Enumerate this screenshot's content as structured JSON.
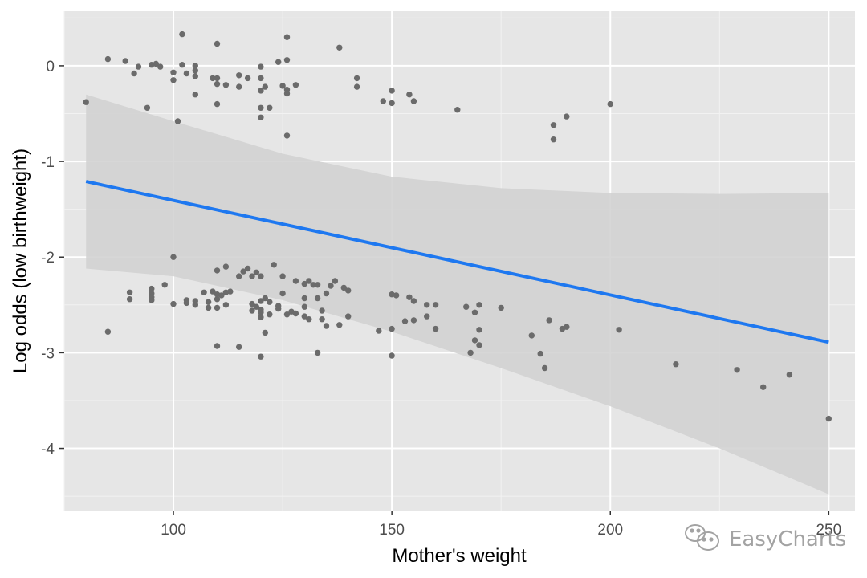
{
  "chart_data": {
    "type": "scatter",
    "xlabel": "Mother's weight",
    "ylabel": "Log odds (low birthweight)",
    "xlim": [
      75,
      256
    ],
    "ylim": [
      -4.65,
      0.57
    ],
    "x_ticks": [
      100,
      150,
      200,
      250
    ],
    "x_tick_labels": [
      "100",
      "150",
      "200",
      "250"
    ],
    "x_minor_ticks": [
      75,
      125,
      175,
      225
    ],
    "y_ticks": [
      0,
      -1,
      -2,
      -3,
      -4
    ],
    "y_tick_labels": [
      "0",
      "-1",
      "-2",
      "-3",
      "-4"
    ],
    "y_minor_ticks": [
      0.5,
      -0.5,
      -1.5,
      -2.5,
      -3.5,
      -4.5
    ],
    "grid": true,
    "series": [
      {
        "name": "points",
        "type": "scatter",
        "points": [
          [
            80,
            -0.38
          ],
          [
            85,
            0.07
          ],
          [
            89,
            0.05
          ],
          [
            91,
            -0.08
          ],
          [
            92,
            -0.01
          ],
          [
            94,
            -0.44
          ],
          [
            95,
            0.01
          ],
          [
            96,
            0.02
          ],
          [
            97,
            -0.01
          ],
          [
            100,
            -0.07
          ],
          [
            100,
            -0.15
          ],
          [
            101,
            -0.58
          ],
          [
            102,
            0.33
          ],
          [
            102,
            0.01
          ],
          [
            103,
            -0.08
          ],
          [
            105,
            0.0
          ],
          [
            105,
            -0.05
          ],
          [
            105,
            -0.11
          ],
          [
            105,
            -0.3
          ],
          [
            109,
            -0.13
          ],
          [
            110,
            0.23
          ],
          [
            110,
            -0.13
          ],
          [
            110,
            -0.19
          ],
          [
            110,
            -0.4
          ],
          [
            112,
            -0.2
          ],
          [
            115,
            -0.1
          ],
          [
            115,
            -0.22
          ],
          [
            117,
            -0.13
          ],
          [
            120,
            -0.01
          ],
          [
            120,
            -0.13
          ],
          [
            120,
            -0.26
          ],
          [
            120,
            -0.44
          ],
          [
            120,
            -0.54
          ],
          [
            121,
            -0.22
          ],
          [
            122,
            -0.44
          ],
          [
            124,
            0.04
          ],
          [
            125,
            -0.21
          ],
          [
            126,
            0.06
          ],
          [
            126,
            0.3
          ],
          [
            126,
            -0.25
          ],
          [
            126,
            -0.29
          ],
          [
            126,
            -0.73
          ],
          [
            128,
            -0.2
          ],
          [
            138,
            0.19
          ],
          [
            142,
            -0.13
          ],
          [
            142,
            -0.22
          ],
          [
            148,
            -0.37
          ],
          [
            150,
            -0.26
          ],
          [
            150,
            -0.39
          ],
          [
            154,
            -0.3
          ],
          [
            155,
            -0.37
          ],
          [
            165,
            -0.46
          ],
          [
            187,
            -0.62
          ],
          [
            187,
            -0.77
          ],
          [
            190,
            -0.53
          ],
          [
            200,
            -0.4
          ],
          [
            85,
            -2.78
          ],
          [
            90,
            -2.37
          ],
          [
            90,
            -2.44
          ],
          [
            95,
            -2.33
          ],
          [
            95,
            -2.38
          ],
          [
            95,
            -2.42
          ],
          [
            95,
            -2.45
          ],
          [
            98,
            -2.29
          ],
          [
            100,
            -2.0
          ],
          [
            100,
            -2.49
          ],
          [
            103,
            -2.45
          ],
          [
            103,
            -2.48
          ],
          [
            105,
            -2.46
          ],
          [
            105,
            -2.5
          ],
          [
            107,
            -2.37
          ],
          [
            108,
            -2.53
          ],
          [
            108,
            -2.47
          ],
          [
            109,
            -2.36
          ],
          [
            110,
            -2.14
          ],
          [
            110,
            -2.39
          ],
          [
            110,
            -2.44
          ],
          [
            110,
            -2.53
          ],
          [
            110,
            -2.93
          ],
          [
            111,
            -2.4
          ],
          [
            112,
            -2.1
          ],
          [
            112,
            -2.37
          ],
          [
            112,
            -2.5
          ],
          [
            113,
            -2.36
          ],
          [
            115,
            -2.2
          ],
          [
            115,
            -2.94
          ],
          [
            116,
            -2.15
          ],
          [
            117,
            -2.12
          ],
          [
            118,
            -2.2
          ],
          [
            118,
            -2.49
          ],
          [
            118,
            -2.56
          ],
          [
            119,
            -2.52
          ],
          [
            119,
            -2.16
          ],
          [
            120,
            -2.2
          ],
          [
            120,
            -2.46
          ],
          [
            120,
            -2.55
          ],
          [
            120,
            -2.58
          ],
          [
            120,
            -2.63
          ],
          [
            120,
            -3.04
          ],
          [
            121,
            -2.43
          ],
          [
            121,
            -2.79
          ],
          [
            122,
            -2.47
          ],
          [
            122,
            -2.6
          ],
          [
            123,
            -2.08
          ],
          [
            124,
            -2.51
          ],
          [
            124,
            -2.54
          ],
          [
            125,
            -2.2
          ],
          [
            125,
            -2.38
          ],
          [
            126,
            -2.6
          ],
          [
            127,
            -2.57
          ],
          [
            128,
            -2.25
          ],
          [
            128,
            -2.59
          ],
          [
            130,
            -2.28
          ],
          [
            130,
            -2.43
          ],
          [
            130,
            -2.52
          ],
          [
            130,
            -2.62
          ],
          [
            131,
            -2.25
          ],
          [
            131,
            -2.65
          ],
          [
            132,
            -2.29
          ],
          [
            133,
            -2.29
          ],
          [
            133,
            -2.43
          ],
          [
            133,
            -3.0
          ],
          [
            134,
            -2.56
          ],
          [
            134,
            -2.65
          ],
          [
            135,
            -2.38
          ],
          [
            135,
            -2.72
          ],
          [
            136,
            -2.3
          ],
          [
            137,
            -2.25
          ],
          [
            138,
            -2.71
          ],
          [
            139,
            -2.32
          ],
          [
            140,
            -2.35
          ],
          [
            140,
            -2.62
          ],
          [
            147,
            -2.77
          ],
          [
            150,
            -2.39
          ],
          [
            150,
            -2.75
          ],
          [
            150,
            -3.03
          ],
          [
            151,
            -2.4
          ],
          [
            153,
            -2.67
          ],
          [
            154,
            -2.42
          ],
          [
            155,
            -2.46
          ],
          [
            155,
            -2.66
          ],
          [
            158,
            -2.5
          ],
          [
            158,
            -2.62
          ],
          [
            160,
            -2.5
          ],
          [
            160,
            -2.75
          ],
          [
            167,
            -2.52
          ],
          [
            168,
            -3.0
          ],
          [
            169,
            -2.58
          ],
          [
            169,
            -2.87
          ],
          [
            170,
            -2.5
          ],
          [
            170,
            -2.76
          ],
          [
            170,
            -2.92
          ],
          [
            175,
            -2.53
          ],
          [
            182,
            -2.82
          ],
          [
            184,
            -3.01
          ],
          [
            185,
            -3.16
          ],
          [
            186,
            -2.66
          ],
          [
            189,
            -2.75
          ],
          [
            190,
            -2.73
          ],
          [
            202,
            -2.76
          ],
          [
            215,
            -3.12
          ],
          [
            229,
            -3.18
          ],
          [
            235,
            -3.36
          ],
          [
            241,
            -3.23
          ],
          [
            250,
            -3.69
          ]
        ]
      },
      {
        "name": "fit",
        "type": "line",
        "x": [
          80,
          250
        ],
        "y": [
          -1.21,
          -2.89
        ],
        "color": "#1e78f0"
      },
      {
        "name": "confidence band",
        "type": "area",
        "x": [
          80,
          100,
          125,
          150,
          175,
          200,
          225,
          250
        ],
        "upper": [
          -0.3,
          -0.58,
          -0.92,
          -1.16,
          -1.28,
          -1.33,
          -1.34,
          -1.33
        ],
        "lower": [
          -2.12,
          -2.2,
          -2.45,
          -2.78,
          -3.16,
          -3.56,
          -4.0,
          -4.48
        ]
      }
    ]
  },
  "watermark": {
    "text": "EasyCharts",
    "icon": "wechat-logo-icon"
  },
  "colors": {
    "panel": "#e6e6e6",
    "grid_major": "#ffffff",
    "grid_minor": "#f2f2f2",
    "points": "#6b6b6b",
    "fit_line": "#1e78f0",
    "band": "#d0d0d0"
  }
}
